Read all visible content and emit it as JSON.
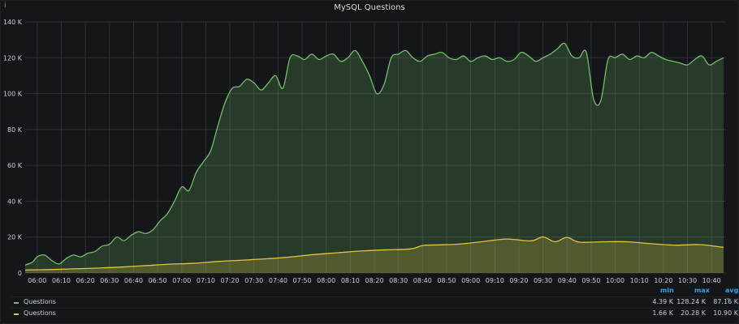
{
  "panel": {
    "title": "MySQL Questions",
    "info_glyph": "i"
  },
  "chart_data": {
    "type": "area",
    "title": "MySQL Questions",
    "xlabel": "",
    "ylabel": "",
    "ylim": [
      0,
      140000
    ],
    "xlim": [
      "05:55",
      "10:46"
    ],
    "y_ticks": [
      "0",
      "20 K",
      "40 K",
      "60 K",
      "80 K",
      "100 K",
      "120 K",
      "140 K"
    ],
    "x_ticks": [
      "06:00",
      "06:10",
      "06:20",
      "06:30",
      "06:40",
      "06:50",
      "07:00",
      "07:10",
      "07:20",
      "07:30",
      "07:40",
      "07:50",
      "08:00",
      "08:10",
      "08:20",
      "08:30",
      "08:40",
      "08:50",
      "09:00",
      "09:10",
      "09:20",
      "09:30",
      "09:40",
      "09:50",
      "10:00",
      "10:10",
      "10:20",
      "10:30",
      "10:40"
    ],
    "grid": true,
    "series": [
      {
        "name": "Questions",
        "color": "#73bf69",
        "x": [
          "05:55",
          "05:58",
          "06:00",
          "06:03",
          "06:06",
          "06:09",
          "06:12",
          "06:15",
          "06:18",
          "06:21",
          "06:24",
          "06:27",
          "06:30",
          "06:33",
          "06:36",
          "06:39",
          "06:42",
          "06:45",
          "06:48",
          "06:51",
          "06:54",
          "06:57",
          "07:00",
          "07:03",
          "07:06",
          "07:09",
          "07:12",
          "07:15",
          "07:18",
          "07:21",
          "07:24",
          "07:27",
          "07:30",
          "07:33",
          "07:36",
          "07:39",
          "07:42",
          "07:45",
          "07:48",
          "07:51",
          "07:54",
          "07:57",
          "08:00",
          "08:03",
          "08:06",
          "08:09",
          "08:12",
          "08:15",
          "08:18",
          "08:21",
          "08:24",
          "08:27",
          "08:30",
          "08:33",
          "08:36",
          "08:39",
          "08:42",
          "08:45",
          "08:48",
          "08:51",
          "08:54",
          "08:57",
          "09:00",
          "09:03",
          "09:06",
          "09:09",
          "09:12",
          "09:15",
          "09:18",
          "09:21",
          "09:24",
          "09:27",
          "09:30",
          "09:33",
          "09:36",
          "09:39",
          "09:42",
          "09:45",
          "09:48",
          "09:51",
          "09:54",
          "09:57",
          "10:00",
          "10:03",
          "10:06",
          "10:09",
          "10:12",
          "10:15",
          "10:18",
          "10:21",
          "10:24",
          "10:27",
          "10:30",
          "10:33",
          "10:36",
          "10:39",
          "10:42",
          "10:45"
        ],
        "values": [
          4400,
          6000,
          9000,
          10000,
          7000,
          5000,
          8000,
          10000,
          9000,
          11000,
          12000,
          15000,
          16000,
          20000,
          18000,
          21000,
          23000,
          22000,
          24000,
          29000,
          33000,
          40000,
          48000,
          46000,
          56000,
          62000,
          68000,
          82000,
          95000,
          103000,
          104000,
          108000,
          106000,
          102000,
          106000,
          110000,
          103000,
          120000,
          121000,
          119000,
          122000,
          119000,
          121000,
          122000,
          118000,
          120000,
          124000,
          118000,
          110000,
          100000,
          105000,
          120000,
          122000,
          124000,
          120000,
          118000,
          121000,
          122000,
          123000,
          120000,
          119000,
          121000,
          118000,
          120000,
          121000,
          119000,
          120000,
          118000,
          119000,
          123000,
          121000,
          118000,
          120000,
          122000,
          125000,
          128000,
          121000,
          120000,
          123000,
          97000,
          96000,
          119000,
          120000,
          122000,
          119000,
          121000,
          120000,
          123000,
          121000,
          119000,
          118000,
          117000,
          116000,
          119000,
          121000,
          116000,
          118000,
          120000
        ],
        "min": "4.39 K",
        "max": "128.24 K",
        "avg": "87.16 K"
      },
      {
        "name": "Questions",
        "color": "#e5c33f",
        "x": [
          "05:55",
          "06:05",
          "06:15",
          "06:25",
          "06:35",
          "06:45",
          "06:55",
          "07:05",
          "07:15",
          "07:25",
          "07:35",
          "07:45",
          "07:55",
          "08:05",
          "08:15",
          "08:25",
          "08:35",
          "08:40",
          "08:45",
          "08:55",
          "09:05",
          "09:15",
          "09:25",
          "09:30",
          "09:35",
          "09:40",
          "09:45",
          "09:55",
          "10:05",
          "10:15",
          "10:25",
          "10:35",
          "10:45"
        ],
        "values": [
          1700,
          1900,
          2300,
          2700,
          3300,
          4100,
          4900,
          5400,
          6400,
          7100,
          7900,
          8900,
          10300,
          11300,
          12300,
          12900,
          13400,
          15300,
          15600,
          16100,
          17500,
          18900,
          17900,
          20100,
          17400,
          19800,
          17200,
          17400,
          17400,
          16300,
          15500,
          15800,
          14300
        ],
        "min": "1.66 K",
        "max": "20.28 K",
        "avg": "10.90 K"
      }
    ],
    "legend": {
      "placement": "bottom",
      "columns": [
        "min",
        "max",
        "avg"
      ],
      "sort_glyph": "⌄"
    }
  }
}
